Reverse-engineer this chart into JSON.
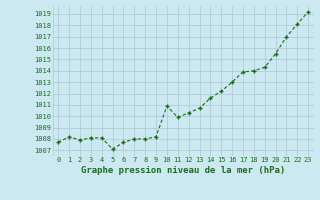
{
  "x": [
    0,
    1,
    2,
    3,
    4,
    5,
    6,
    7,
    8,
    9,
    10,
    11,
    12,
    13,
    14,
    15,
    16,
    17,
    18,
    19,
    20,
    21,
    22,
    23
  ],
  "y": [
    1007.7,
    1008.2,
    1007.9,
    1008.1,
    1008.1,
    1007.1,
    1007.7,
    1008.0,
    1008.0,
    1008.2,
    1010.9,
    1009.9,
    1010.3,
    1010.7,
    1011.6,
    1012.2,
    1013.0,
    1013.9,
    1014.0,
    1014.3,
    1015.5,
    1017.0,
    1018.1,
    1019.2
  ],
  "line_color": "#1a6e1a",
  "marker": "+",
  "marker_color": "#1a6e1a",
  "bg_color": "#cce8f0",
  "grid_color": "#aac8d4",
  "xlabel": "Graphe pression niveau de la mer (hPa)",
  "xlabel_color": "#1a6e1a",
  "ylabel_ticks": [
    1007,
    1008,
    1009,
    1010,
    1011,
    1012,
    1013,
    1014,
    1015,
    1016,
    1017,
    1018,
    1019
  ],
  "ylim": [
    1006.5,
    1019.7
  ],
  "xlim": [
    -0.5,
    23.5
  ],
  "tick_color": "#1a6e1a",
  "tick_fontsize": 5.0,
  "xlabel_fontsize": 6.5,
  "linewidth": 0.8,
  "markersize": 3.5,
  "markeredgewidth": 1.0
}
